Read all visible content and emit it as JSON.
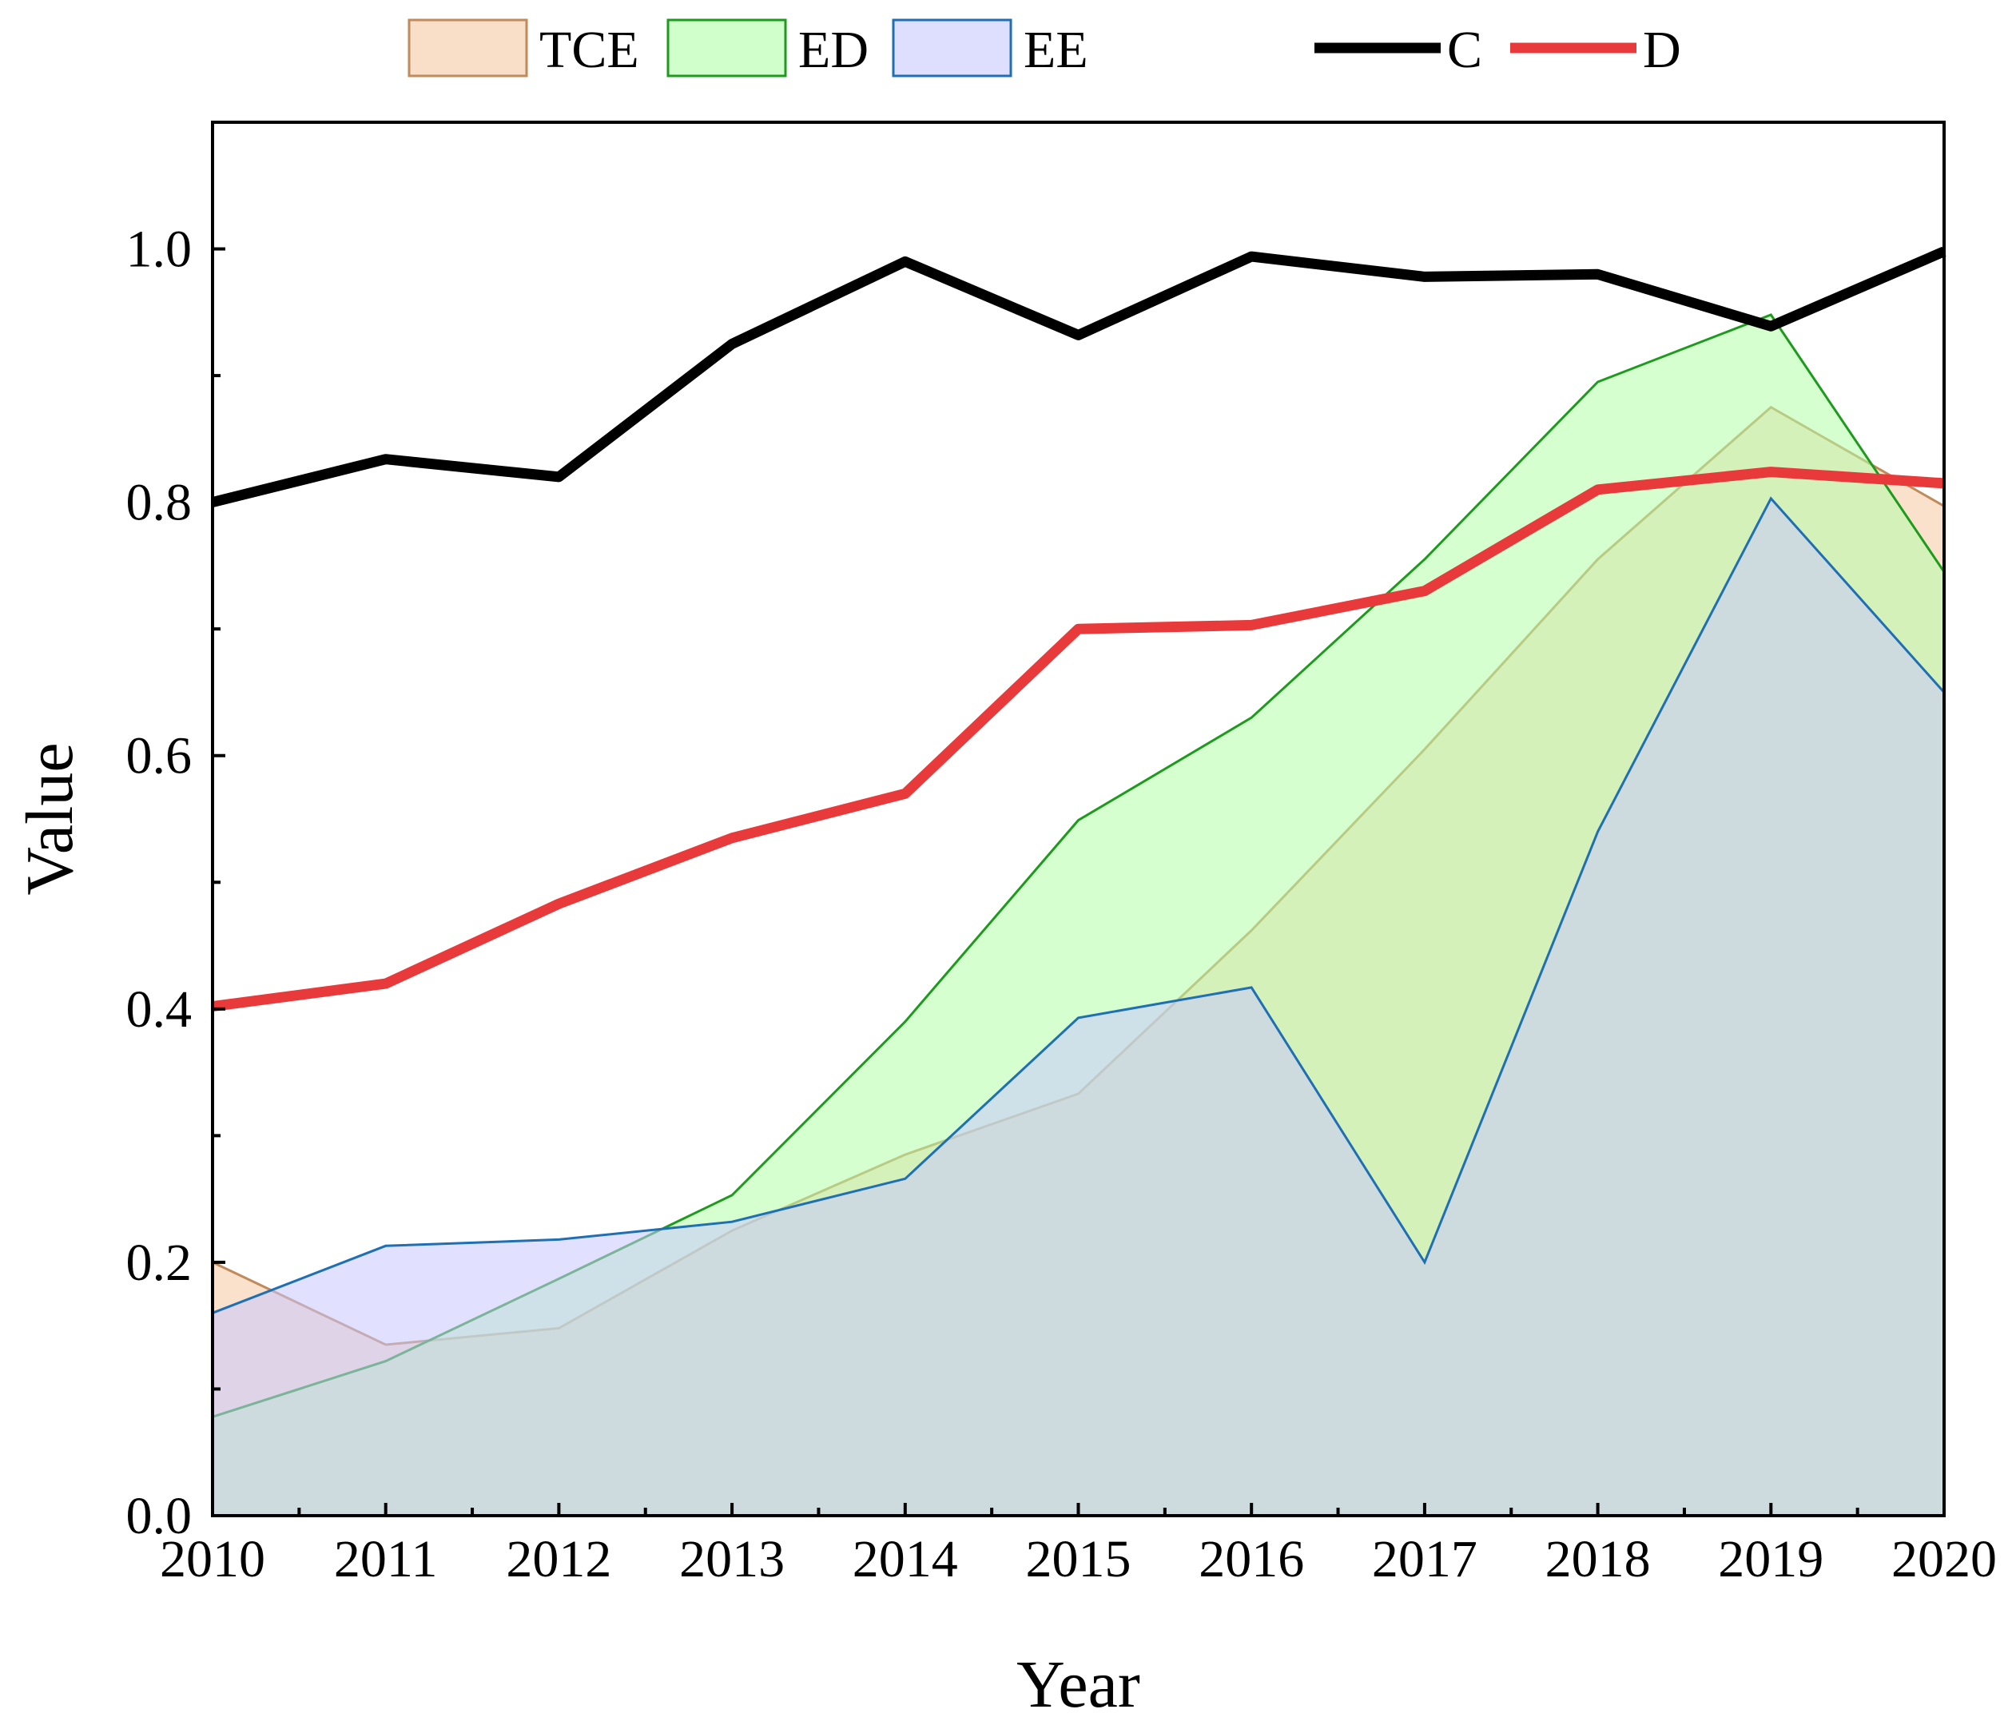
{
  "chart_data": {
    "type": "area",
    "xlabel": "Year",
    "ylabel": "Value",
    "ylim": [
      0,
      1.1
    ],
    "yticks": [
      "0.0",
      "0.2",
      "0.4",
      "0.6",
      "0.8",
      "1.0"
    ],
    "categories": [
      "2010",
      "2011",
      "2012",
      "2013",
      "2014",
      "2015",
      "2016",
      "2017",
      "2018",
      "2019",
      "2020"
    ],
    "legend_position": "top",
    "area_series": [
      {
        "name": "TCE",
        "fill": "#f5c9a3",
        "stroke": "#c08a5a",
        "values": [
          0.2,
          0.135,
          0.148,
          0.225,
          0.285,
          0.333,
          0.462,
          0.605,
          0.755,
          0.875,
          0.797
        ]
      },
      {
        "name": "ED",
        "fill": "#b2ffa8",
        "stroke": "#1d9b1d",
        "values": [
          0.078,
          0.122,
          0.187,
          0.253,
          0.39,
          0.549,
          0.63,
          0.755,
          0.895,
          0.948,
          0.745
        ]
      },
      {
        "name": "EE",
        "fill": "#c8c8ff",
        "stroke": "#1f6fb4",
        "values": [
          0.16,
          0.213,
          0.218,
          0.232,
          0.266,
          0.393,
          0.417,
          0.2,
          0.54,
          0.803,
          0.65
        ]
      }
    ],
    "line_series": [
      {
        "name": "C",
        "color": "#000000",
        "values": [
          0.8,
          0.834,
          0.82,
          0.925,
          0.99,
          0.932,
          0.994,
          0.978,
          0.98,
          0.939,
          0.998
        ]
      },
      {
        "name": "D",
        "color": "#e83a3a",
        "values": [
          0.402,
          0.42,
          0.483,
          0.535,
          0.57,
          0.7,
          0.703,
          0.73,
          0.81,
          0.824,
          0.815
        ]
      }
    ]
  }
}
